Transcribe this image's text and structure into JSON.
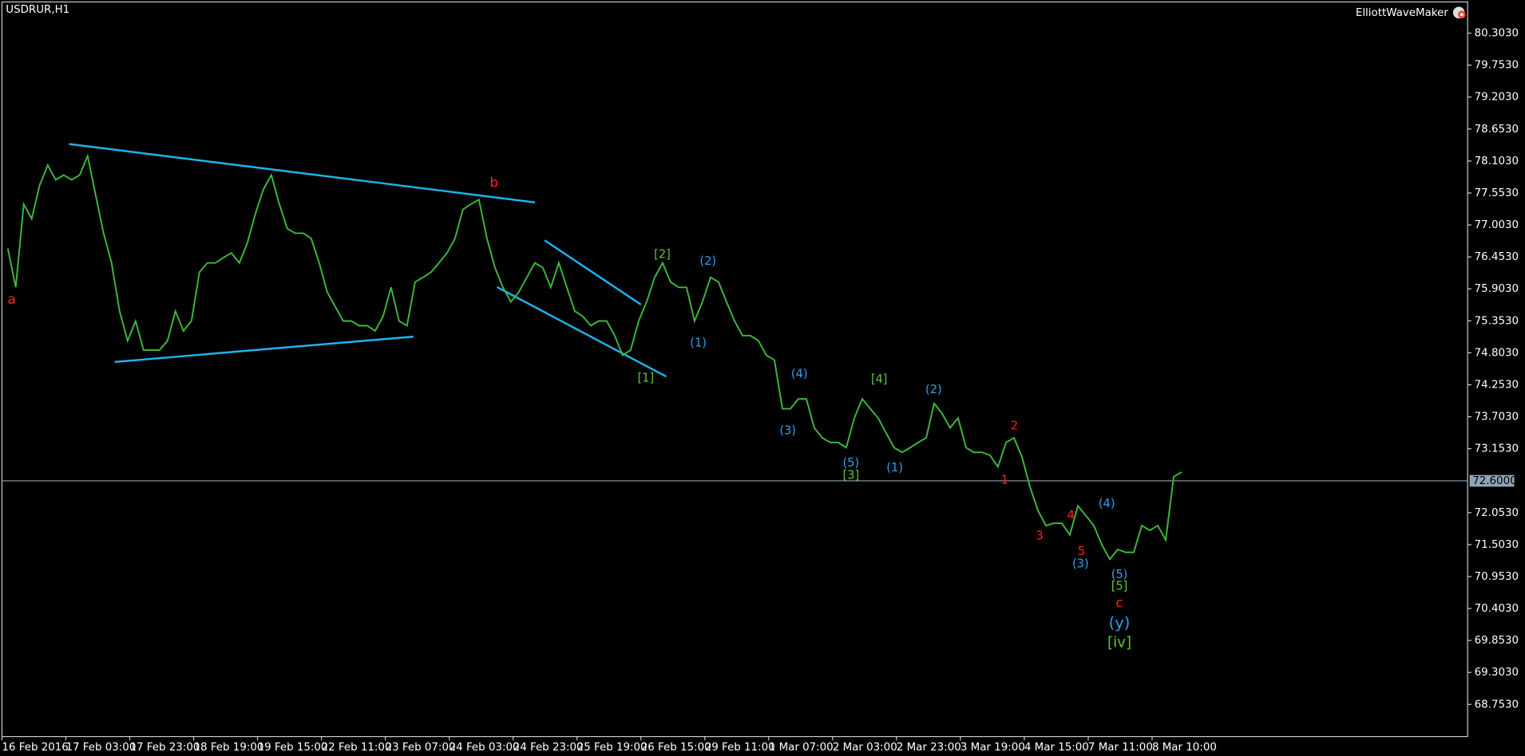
{
  "chart_data": {
    "type": "line",
    "title": "USDRUR,H1",
    "indicator": "ElliottWaveMaker",
    "color": "#3cb83c",
    "ylim": [
      68.2,
      80.84
    ],
    "yticks": [
      {
        "value": 80.303,
        "label": "80.3030"
      },
      {
        "value": 79.753,
        "label": "79.7530"
      },
      {
        "value": 79.203,
        "label": "79.2030"
      },
      {
        "value": 78.653,
        "label": "78.6530"
      },
      {
        "value": 78.103,
        "label": "78.1030"
      },
      {
        "value": 77.553,
        "label": "77.5530"
      },
      {
        "value": 77.003,
        "label": "77.0030"
      },
      {
        "value": 76.453,
        "label": "76.4530"
      },
      {
        "value": 75.903,
        "label": "75.9030"
      },
      {
        "value": 75.353,
        "label": "75.3530"
      },
      {
        "value": 74.803,
        "label": "74.8030"
      },
      {
        "value": 74.253,
        "label": "74.2530"
      },
      {
        "value": 73.703,
        "label": "73.7030"
      },
      {
        "value": 73.153,
        "label": "73.1530"
      },
      {
        "value": 72.053,
        "label": "72.0530"
      },
      {
        "value": 71.503,
        "label": "71.5030"
      },
      {
        "value": 70.953,
        "label": "70.9530"
      },
      {
        "value": 70.403,
        "label": "70.4030"
      },
      {
        "value": 69.853,
        "label": "69.8530"
      },
      {
        "value": 69.303,
        "label": "69.3030"
      },
      {
        "value": 68.753,
        "label": "68.7530"
      }
    ],
    "current_price": {
      "value": 72.6,
      "label": "72.6000"
    },
    "xtick_labels": [
      "16 Feb 2016",
      "17 Feb 03:00",
      "17 Feb 23:00",
      "18 Feb 19:00",
      "19 Feb 15:00",
      "22 Feb 11:00",
      "23 Feb 07:00",
      "24 Feb 03:00",
      "24 Feb 23:00",
      "25 Feb 19:00",
      "26 Feb 15:00",
      "29 Feb 11:00",
      "1 Mar 07:00",
      "2 Mar 03:00",
      "2 Mar 23:00",
      "3 Mar 19:00",
      "4 Mar 15:00",
      "7 Mar 11:00",
      "8 Mar 10:00"
    ],
    "values": [
      76.6,
      75.93,
      77.36,
      77.11,
      77.69,
      78.03,
      77.78,
      77.86,
      77.78,
      77.86,
      78.19,
      77.52,
      76.86,
      76.35,
      75.52,
      75.01,
      75.35,
      74.85,
      74.85,
      74.85,
      75.01,
      75.52,
      75.18,
      75.35,
      76.19,
      76.35,
      76.35,
      76.44,
      76.52,
      76.35,
      76.69,
      77.19,
      77.61,
      77.86,
      77.36,
      76.94,
      76.86,
      76.86,
      76.77,
      76.35,
      75.85,
      75.6,
      75.35,
      75.35,
      75.27,
      75.27,
      75.18,
      75.43,
      75.93,
      75.35,
      75.27,
      76.02,
      76.1,
      76.19,
      76.35,
      76.52,
      76.77,
      77.27,
      77.36,
      77.44,
      76.77,
      76.27,
      75.93,
      75.68,
      75.85,
      76.1,
      76.35,
      76.27,
      75.93,
      76.35,
      75.93,
      75.52,
      75.43,
      75.27,
      75.35,
      75.35,
      75.1,
      74.76,
      74.85,
      75.35,
      75.68,
      76.1,
      76.35,
      76.02,
      75.93,
      75.93,
      75.35,
      75.68,
      76.1,
      76.02,
      75.68,
      75.35,
      75.1,
      75.1,
      75.01,
      74.76,
      74.68,
      73.84,
      73.84,
      74.01,
      74.01,
      73.51,
      73.34,
      73.26,
      73.26,
      73.17,
      73.68,
      74.01,
      73.84,
      73.68,
      73.42,
      73.17,
      73.09,
      73.17,
      73.26,
      73.34,
      73.93,
      73.76,
      73.51,
      73.68,
      73.17,
      73.09,
      73.09,
      73.04,
      72.84,
      73.26,
      73.34,
      73.01,
      72.5,
      72.09,
      71.83,
      71.87,
      71.87,
      71.67,
      72.17,
      72.0,
      71.83,
      71.5,
      71.25,
      71.42,
      71.37,
      71.37,
      71.83,
      71.75,
      71.83,
      71.58,
      72.67,
      72.75
    ],
    "annotations": [
      {
        "text": "a",
        "color": "#ff2020"
      },
      {
        "text": "b",
        "color": "#ff2020"
      },
      {
        "text": "[2]",
        "color": "#5cc72e"
      },
      {
        "text": "(2)",
        "color": "#2aa3ee"
      },
      {
        "text": "(1)",
        "color": "#2aa3ee"
      },
      {
        "text": "[1]",
        "color": "#5cc72e"
      },
      {
        "text": "(4)",
        "color": "#2aa3ee"
      },
      {
        "text": "[4]",
        "color": "#5cc72e"
      },
      {
        "text": "(3)",
        "color": "#2aa3ee"
      },
      {
        "text": "(2)",
        "color": "#2aa3ee"
      },
      {
        "text": "(5)",
        "color": "#2aa3ee"
      },
      {
        "text": "[3]",
        "color": "#5cc72e"
      },
      {
        "text": "(1)",
        "color": "#2aa3ee"
      },
      {
        "text": "2",
        "color": "#ff2020"
      },
      {
        "text": "1",
        "color": "#ff2020"
      },
      {
        "text": "3",
        "color": "#ff2020"
      },
      {
        "text": "4",
        "color": "#ff2020"
      },
      {
        "text": "5",
        "color": "#ff2020"
      },
      {
        "text": "(3)",
        "color": "#2aa3ee"
      },
      {
        "text": "(4)",
        "color": "#2aa3ee"
      },
      {
        "text": "(5)",
        "color": "#2aa3ee"
      },
      {
        "text": "[5]",
        "color": "#5cc72e"
      },
      {
        "text": "c",
        "color": "#ff2020"
      },
      {
        "text": "(y)",
        "color": "#2aa3ee"
      },
      {
        "text": "[iv]",
        "color": "#5cc72e"
      }
    ]
  }
}
